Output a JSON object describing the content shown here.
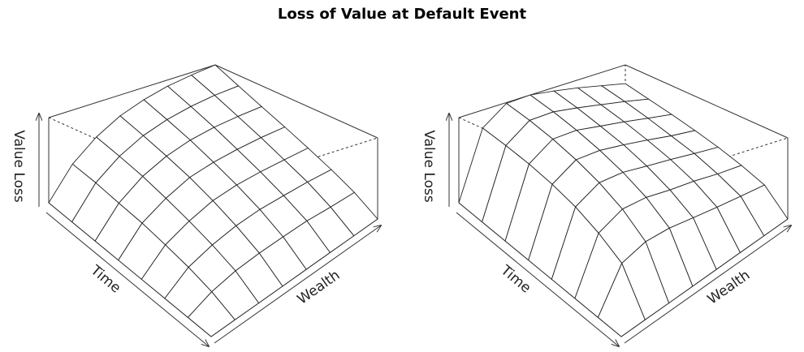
{
  "title": "Loss of Value at Default Event",
  "chart_data": [
    {
      "type": "surface",
      "zlabel": "Value Loss",
      "xlabel": "Time",
      "ylabel": "Wealth",
      "zlim": [
        0,
        1
      ],
      "z": [
        [
          0,
          0.37,
          0.6,
          0.76,
          0.86,
          0.93,
          0.97,
          1
        ],
        [
          0,
          0.33,
          0.53,
          0.67,
          0.76,
          0.82,
          0.86,
          0.88
        ],
        [
          0,
          0.28,
          0.46,
          0.58,
          0.66,
          0.71,
          0.74,
          0.76
        ],
        [
          0,
          0.24,
          0.38,
          0.49,
          0.55,
          0.59,
          0.62,
          0.64
        ],
        [
          0,
          0.19,
          0.3,
          0.39,
          0.44,
          0.47,
          0.49,
          0.51
        ],
        [
          0,
          0.14,
          0.22,
          0.28,
          0.32,
          0.34,
          0.36,
          0.37
        ],
        [
          0,
          0.08,
          0.13,
          0.16,
          0.18,
          0.2,
          0.2,
          0.21
        ],
        [
          0,
          0,
          0,
          0,
          0,
          0,
          0,
          0
        ]
      ]
    },
    {
      "type": "surface",
      "zlabel": "Value Loss",
      "xlabel": "Time",
      "ylabel": "Wealth",
      "zlim": [
        0,
        1
      ],
      "z": [
        [
          0,
          0.79,
          0.99,
          1,
          0.96,
          0.91,
          0.85,
          0.79
        ],
        [
          0,
          0.73,
          0.92,
          0.93,
          0.89,
          0.84,
          0.79,
          0.73
        ],
        [
          0,
          0.67,
          0.84,
          0.85,
          0.81,
          0.77,
          0.72,
          0.67
        ],
        [
          0,
          0.6,
          0.75,
          0.76,
          0.73,
          0.69,
          0.64,
          0.6
        ],
        [
          0,
          0.52,
          0.65,
          0.66,
          0.63,
          0.6,
          0.56,
          0.52
        ],
        [
          0,
          0.42,
          0.53,
          0.54,
          0.51,
          0.49,
          0.45,
          0.42
        ],
        [
          0,
          0.3,
          0.37,
          0.38,
          0.36,
          0.34,
          0.32,
          0.3
        ],
        [
          0,
          0,
          0,
          0,
          0,
          0,
          0,
          0
        ]
      ]
    }
  ]
}
